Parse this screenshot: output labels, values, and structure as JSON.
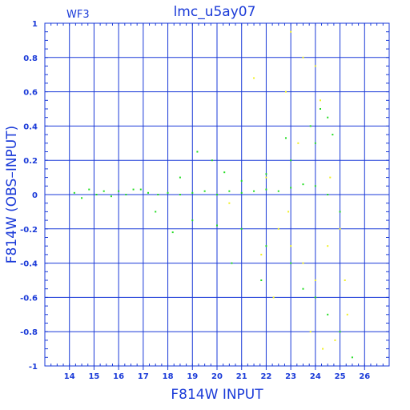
{
  "chart_data": {
    "type": "scatter",
    "title": "lmc_u5ay07",
    "panel_label": "WF3",
    "xlabel": "F814W INPUT",
    "ylabel": "F814W (OBS–INPUT)",
    "xlim": [
      13,
      27
    ],
    "ylim": [
      -1,
      1
    ],
    "xticks": [
      14,
      15,
      16,
      17,
      18,
      19,
      20,
      21,
      22,
      23,
      24,
      25,
      26
    ],
    "yticks": [
      -1,
      -0.8,
      -0.6,
      -0.4,
      -0.2,
      0,
      0.2,
      0.4,
      0.6,
      0.8,
      1
    ],
    "grid": true,
    "colors": {
      "axis": "#1a3ad8",
      "grid": "#1a3ad8",
      "background": "#ffffff"
    },
    "series": [
      {
        "color": "#22dd22",
        "points": [
          [
            14.2,
            0.01
          ],
          [
            14.5,
            -0.02
          ],
          [
            14.8,
            0.03
          ],
          [
            15.1,
            0.0
          ],
          [
            15.4,
            0.02
          ],
          [
            15.7,
            -0.01
          ],
          [
            16.0,
            0.02
          ],
          [
            16.3,
            0.0
          ],
          [
            16.6,
            0.03
          ],
          [
            16.9,
            0.03
          ],
          [
            17.2,
            0.01
          ],
          [
            17.6,
            0.0
          ],
          [
            18.0,
            0.01
          ],
          [
            18.5,
            0.0
          ],
          [
            19.0,
            0.01
          ],
          [
            19.5,
            0.02
          ],
          [
            20.0,
            0.0
          ],
          [
            20.5,
            0.02
          ],
          [
            21.0,
            0.01
          ],
          [
            21.5,
            0.02
          ],
          [
            22.0,
            0.03
          ],
          [
            22.5,
            0.02
          ],
          [
            23.0,
            0.04
          ],
          [
            23.5,
            0.06
          ],
          [
            24.0,
            0.05
          ],
          [
            24.5,
            0.0
          ],
          [
            25.0,
            -0.1
          ],
          [
            19.0,
            -0.15
          ],
          [
            20.0,
            -0.18
          ],
          [
            21.0,
            -0.2
          ],
          [
            22.0,
            -0.3
          ],
          [
            23.0,
            -0.4
          ],
          [
            23.5,
            -0.55
          ],
          [
            24.0,
            -0.6
          ],
          [
            24.5,
            -0.7
          ],
          [
            25.0,
            -0.8
          ],
          [
            25.5,
            -0.95
          ],
          [
            24.0,
            0.3
          ],
          [
            24.5,
            0.45
          ],
          [
            24.2,
            0.5
          ],
          [
            23.0,
            0.2
          ],
          [
            22.0,
            0.12
          ],
          [
            21.0,
            0.08
          ],
          [
            18.5,
            0.1
          ],
          [
            19.8,
            0.2
          ],
          [
            17.5,
            -0.1
          ],
          [
            18.2,
            -0.22
          ],
          [
            20.6,
            -0.4
          ],
          [
            21.8,
            -0.5
          ],
          [
            19.2,
            0.25
          ],
          [
            20.3,
            0.13
          ],
          [
            22.8,
            0.33
          ],
          [
            23.8,
            0.4
          ],
          [
            24.7,
            0.35
          ]
        ]
      },
      {
        "color": "#f0f022",
        "points": [
          [
            21.5,
            0.68
          ],
          [
            22.0,
            0.1
          ],
          [
            22.5,
            -0.2
          ],
          [
            23.0,
            -0.3
          ],
          [
            23.5,
            -0.4
          ],
          [
            24.0,
            -0.5
          ],
          [
            24.5,
            -0.3
          ],
          [
            25.0,
            -0.2
          ],
          [
            24.2,
            0.55
          ],
          [
            24.0,
            0.75
          ],
          [
            23.0,
            0.95
          ],
          [
            23.5,
            0.8
          ],
          [
            22.8,
            0.6
          ],
          [
            24.8,
            -0.85
          ],
          [
            25.3,
            -0.7
          ],
          [
            23.8,
            -0.8
          ],
          [
            24.3,
            -0.9
          ],
          [
            22.3,
            -0.6
          ],
          [
            21.8,
            -0.35
          ],
          [
            20.5,
            -0.05
          ],
          [
            23.3,
            0.3
          ],
          [
            24.6,
            0.1
          ],
          [
            25.2,
            -0.5
          ],
          [
            22.9,
            -0.1
          ]
        ]
      }
    ]
  }
}
